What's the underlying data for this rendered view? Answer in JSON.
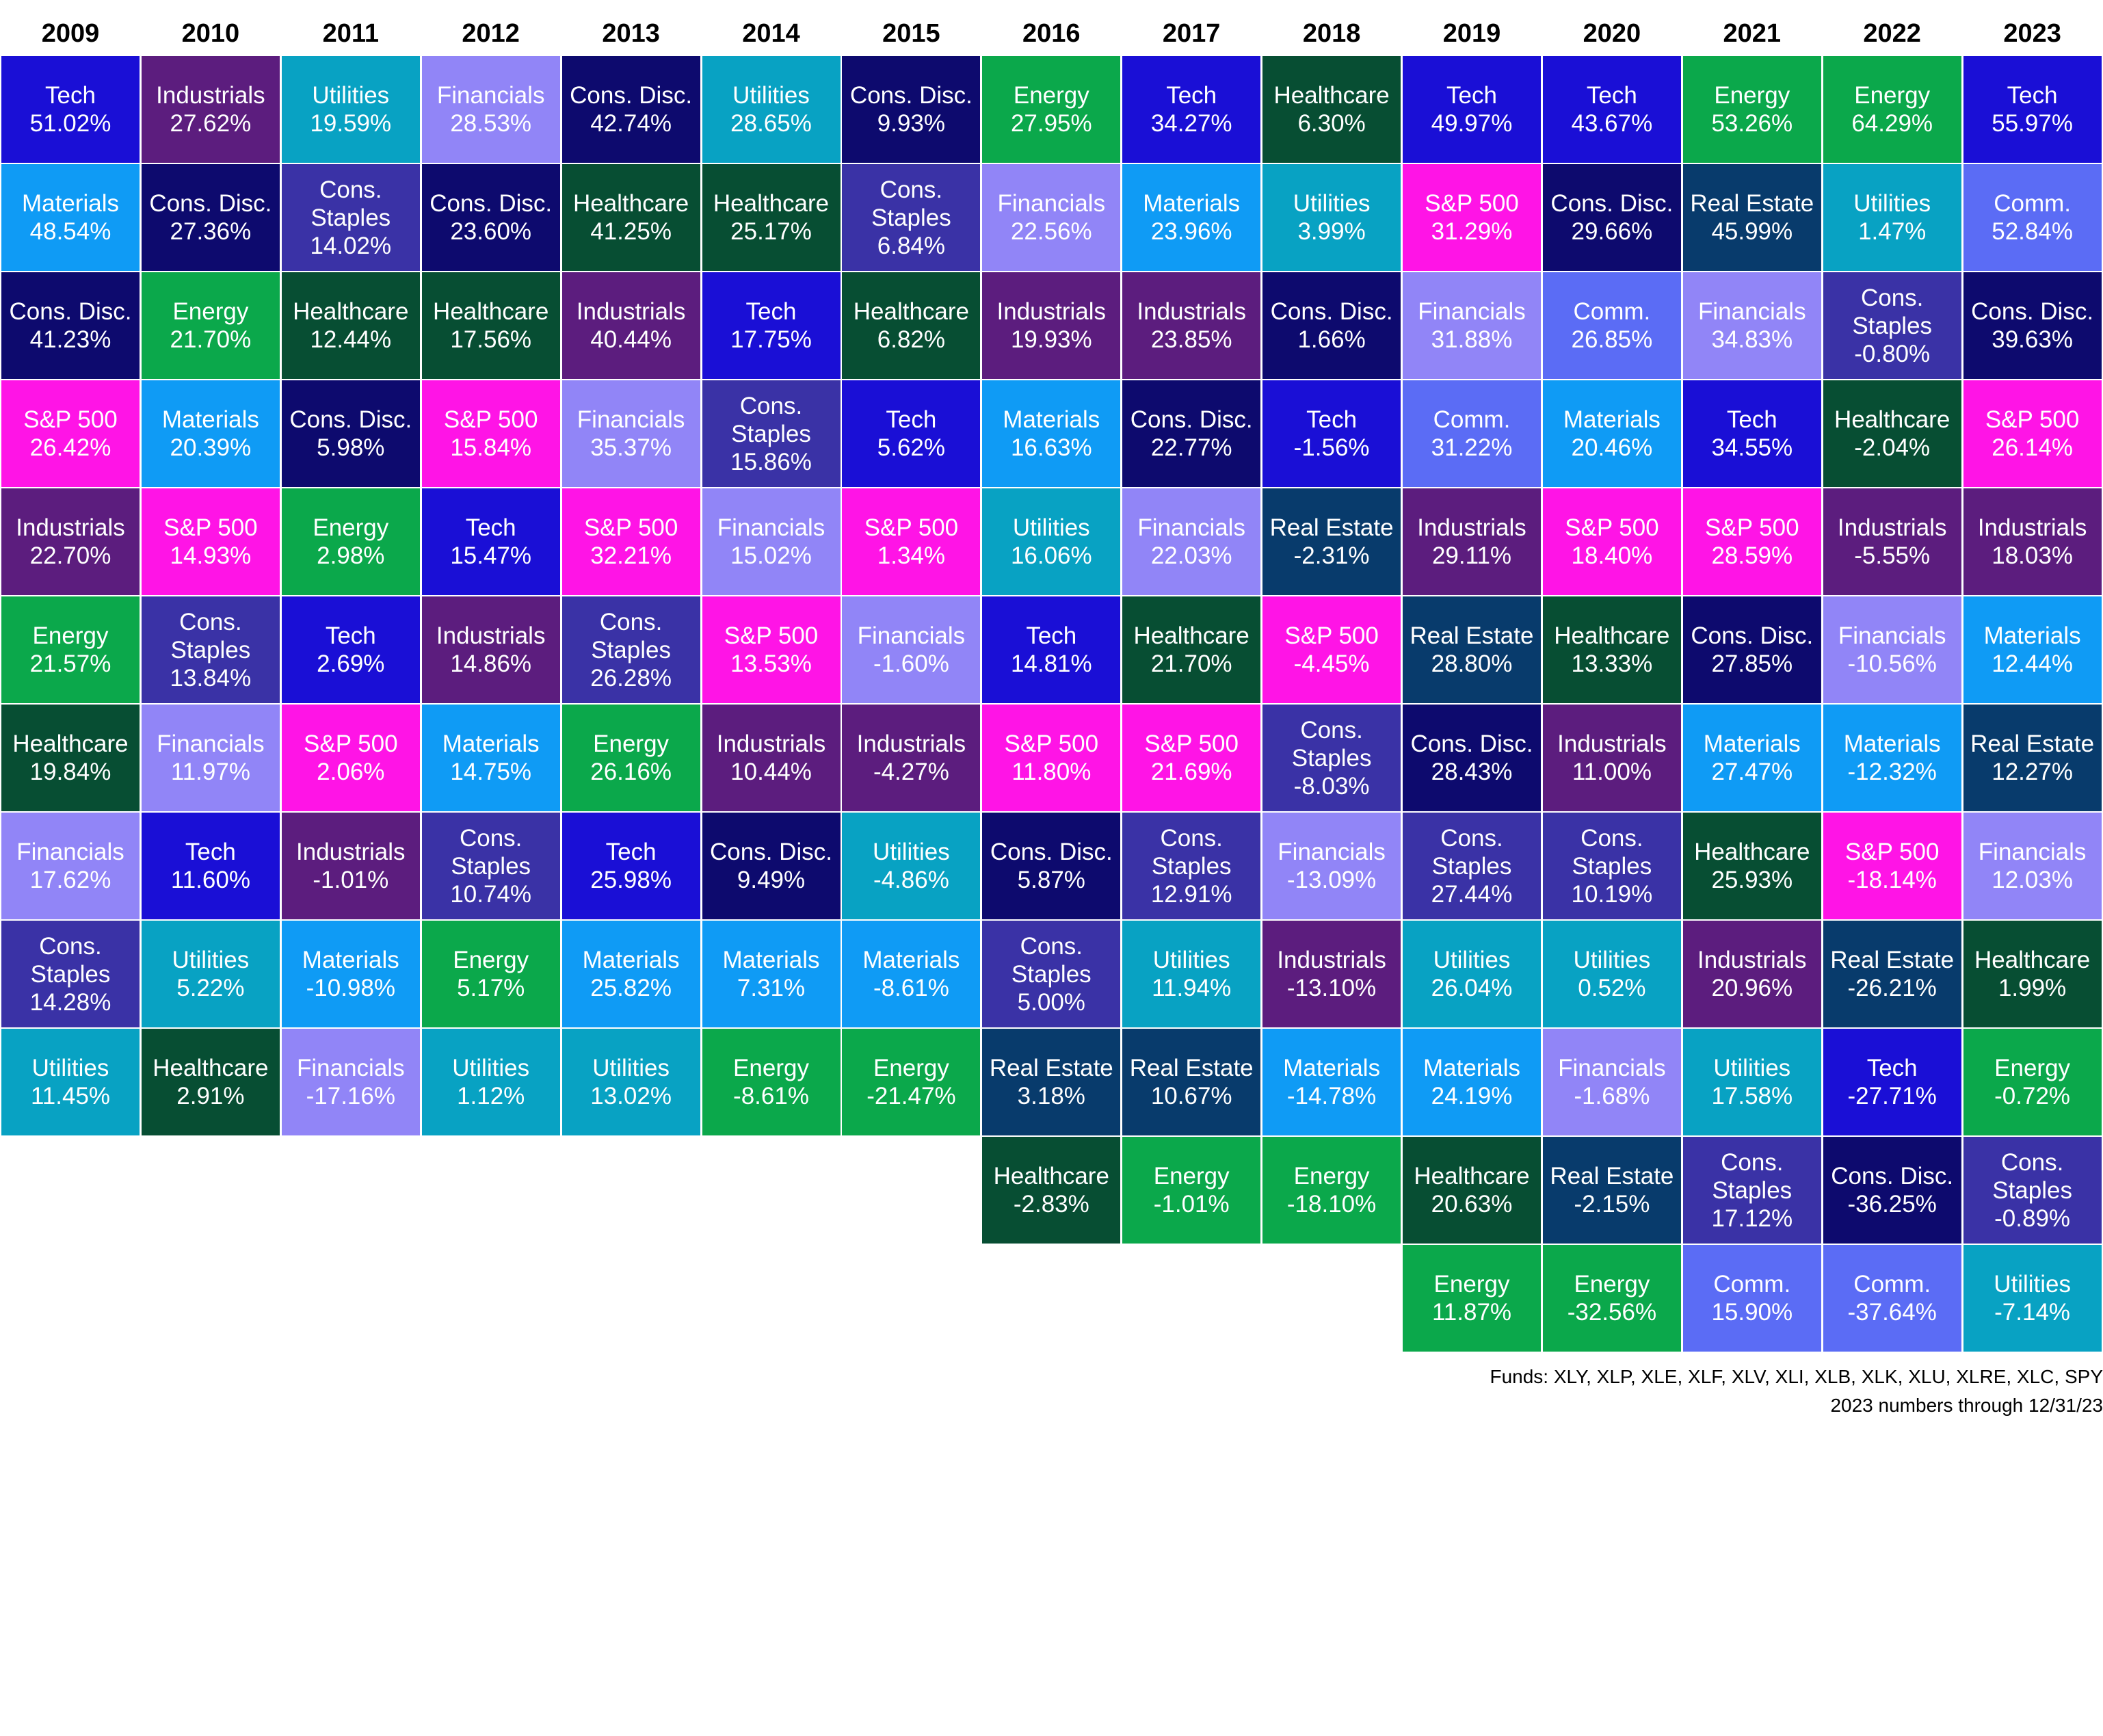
{
  "chart_data": {
    "type": "table",
    "title": "",
    "years": [
      "2009",
      "2010",
      "2011",
      "2012",
      "2013",
      "2014",
      "2015",
      "2016",
      "2017",
      "2018",
      "2019",
      "2020",
      "2021",
      "2022",
      "2023"
    ],
    "colors": {
      "Tech": "#1a0fd6",
      "Materials": "#0f9bf5",
      "Cons. Disc.": "#0d0a6e",
      "S&P 500": "#ff14e6",
      "Industrials": "#5c1d7e",
      "Energy": "#0ba84b",
      "Healthcare": "#074e33",
      "Financials": "#9185f7",
      "Cons. Staples": "#3a32a6",
      "Utilities": "#08a2c3",
      "Real Estate": "#083b6c",
      "Comm.": "#5b6cf5"
    },
    "columns": [
      {
        "year": "2009",
        "cells": [
          {
            "label": "Tech",
            "value": "51.02%"
          },
          {
            "label": "Materials",
            "value": "48.54%"
          },
          {
            "label": "Cons. Disc.",
            "value": "41.23%"
          },
          {
            "label": "S&P 500",
            "value": "26.42%"
          },
          {
            "label": "Industrials",
            "value": "22.70%"
          },
          {
            "label": "Energy",
            "value": "21.57%"
          },
          {
            "label": "Healthcare",
            "value": "19.84%"
          },
          {
            "label": "Financials",
            "value": "17.62%"
          },
          {
            "label": "Cons. Staples",
            "value": "14.28%"
          },
          {
            "label": "Utilities",
            "value": "11.45%"
          }
        ]
      },
      {
        "year": "2010",
        "cells": [
          {
            "label": "Industrials",
            "value": "27.62%"
          },
          {
            "label": "Cons. Disc.",
            "value": "27.36%"
          },
          {
            "label": "Energy",
            "value": "21.70%"
          },
          {
            "label": "Materials",
            "value": "20.39%"
          },
          {
            "label": "S&P 500",
            "value": "14.93%"
          },
          {
            "label": "Cons. Staples",
            "value": "13.84%"
          },
          {
            "label": "Financials",
            "value": "11.97%"
          },
          {
            "label": "Tech",
            "value": "11.60%"
          },
          {
            "label": "Utilities",
            "value": "5.22%"
          },
          {
            "label": "Healthcare",
            "value": "2.91%"
          }
        ]
      },
      {
        "year": "2011",
        "cells": [
          {
            "label": "Utilities",
            "value": "19.59%"
          },
          {
            "label": "Cons. Staples",
            "value": "14.02%"
          },
          {
            "label": "Healthcare",
            "value": "12.44%"
          },
          {
            "label": "Cons. Disc.",
            "value": "5.98%"
          },
          {
            "label": "Energy",
            "value": "2.98%"
          },
          {
            "label": "Tech",
            "value": "2.69%"
          },
          {
            "label": "S&P 500",
            "value": "2.06%"
          },
          {
            "label": "Industrials",
            "value": "-1.01%"
          },
          {
            "label": "Materials",
            "value": "-10.98%"
          },
          {
            "label": "Financials",
            "value": "-17.16%"
          }
        ]
      },
      {
        "year": "2012",
        "cells": [
          {
            "label": "Financials",
            "value": "28.53%"
          },
          {
            "label": "Cons. Disc.",
            "value": "23.60%"
          },
          {
            "label": "Healthcare",
            "value": "17.56%"
          },
          {
            "label": "S&P 500",
            "value": "15.84%"
          },
          {
            "label": "Tech",
            "value": "15.47%"
          },
          {
            "label": "Industrials",
            "value": "14.86%"
          },
          {
            "label": "Materials",
            "value": "14.75%"
          },
          {
            "label": "Cons. Staples",
            "value": "10.74%"
          },
          {
            "label": "Energy",
            "value": "5.17%"
          },
          {
            "label": "Utilities",
            "value": "1.12%"
          }
        ]
      },
      {
        "year": "2013",
        "cells": [
          {
            "label": "Cons. Disc.",
            "value": "42.74%"
          },
          {
            "label": "Healthcare",
            "value": "41.25%"
          },
          {
            "label": "Industrials",
            "value": "40.44%"
          },
          {
            "label": "Financials",
            "value": "35.37%"
          },
          {
            "label": "S&P 500",
            "value": "32.21%"
          },
          {
            "label": "Cons. Staples",
            "value": "26.28%"
          },
          {
            "label": "Energy",
            "value": "26.16%"
          },
          {
            "label": "Tech",
            "value": "25.98%"
          },
          {
            "label": "Materials",
            "value": "25.82%"
          },
          {
            "label": "Utilities",
            "value": "13.02%"
          }
        ]
      },
      {
        "year": "2014",
        "cells": [
          {
            "label": "Utilities",
            "value": "28.65%"
          },
          {
            "label": "Healthcare",
            "value": "25.17%"
          },
          {
            "label": "Tech",
            "value": "17.75%"
          },
          {
            "label": "Cons. Staples",
            "value": "15.86%"
          },
          {
            "label": "Financials",
            "value": "15.02%"
          },
          {
            "label": "S&P 500",
            "value": "13.53%"
          },
          {
            "label": "Industrials",
            "value": "10.44%"
          },
          {
            "label": "Cons. Disc.",
            "value": "9.49%"
          },
          {
            "label": "Materials",
            "value": "7.31%"
          },
          {
            "label": "Energy",
            "value": "-8.61%"
          }
        ]
      },
      {
        "year": "2015",
        "cells": [
          {
            "label": "Cons. Disc.",
            "value": "9.93%"
          },
          {
            "label": "Cons. Staples",
            "value": "6.84%"
          },
          {
            "label": "Healthcare",
            "value": "6.82%"
          },
          {
            "label": "Tech",
            "value": "5.62%"
          },
          {
            "label": "S&P 500",
            "value": "1.34%"
          },
          {
            "label": "Financials",
            "value": "-1.60%"
          },
          {
            "label": "Industrials",
            "value": "-4.27%"
          },
          {
            "label": "Utilities",
            "value": "-4.86%"
          },
          {
            "label": "Materials",
            "value": "-8.61%"
          },
          {
            "label": "Energy",
            "value": "-21.47%"
          }
        ]
      },
      {
        "year": "2016",
        "cells": [
          {
            "label": "Energy",
            "value": "27.95%"
          },
          {
            "label": "Financials",
            "value": "22.56%"
          },
          {
            "label": "Industrials",
            "value": "19.93%"
          },
          {
            "label": "Materials",
            "value": "16.63%"
          },
          {
            "label": "Utilities",
            "value": "16.06%"
          },
          {
            "label": "Tech",
            "value": "14.81%"
          },
          {
            "label": "S&P 500",
            "value": "11.80%"
          },
          {
            "label": "Cons. Disc.",
            "value": "5.87%"
          },
          {
            "label": "Cons. Staples",
            "value": "5.00%"
          },
          {
            "label": "Real Estate",
            "value": "3.18%"
          },
          {
            "label": "Healthcare",
            "value": "-2.83%"
          }
        ]
      },
      {
        "year": "2017",
        "cells": [
          {
            "label": "Tech",
            "value": "34.27%"
          },
          {
            "label": "Materials",
            "value": "23.96%"
          },
          {
            "label": "Industrials",
            "value": "23.85%"
          },
          {
            "label": "Cons. Disc.",
            "value": "22.77%"
          },
          {
            "label": "Financials",
            "value": "22.03%"
          },
          {
            "label": "Healthcare",
            "value": "21.70%"
          },
          {
            "label": "S&P 500",
            "value": "21.69%"
          },
          {
            "label": "Cons. Staples",
            "value": "12.91%"
          },
          {
            "label": "Utilities",
            "value": "11.94%"
          },
          {
            "label": "Real Estate",
            "value": "10.67%"
          },
          {
            "label": "Energy",
            "value": "-1.01%"
          }
        ]
      },
      {
        "year": "2018",
        "cells": [
          {
            "label": "Healthcare",
            "value": "6.30%"
          },
          {
            "label": "Utilities",
            "value": "3.99%"
          },
          {
            "label": "Cons. Disc.",
            "value": "1.66%"
          },
          {
            "label": "Tech",
            "value": "-1.56%"
          },
          {
            "label": "Real Estate",
            "value": "-2.31%"
          },
          {
            "label": "S&P 500",
            "value": "-4.45%"
          },
          {
            "label": "Cons. Staples",
            "value": "-8.03%"
          },
          {
            "label": "Financials",
            "value": "-13.09%"
          },
          {
            "label": "Industrials",
            "value": "-13.10%"
          },
          {
            "label": "Materials",
            "value": "-14.78%"
          },
          {
            "label": "Energy",
            "value": "-18.10%"
          }
        ]
      },
      {
        "year": "2019",
        "cells": [
          {
            "label": "Tech",
            "value": "49.97%"
          },
          {
            "label": "S&P 500",
            "value": "31.29%"
          },
          {
            "label": "Financials",
            "value": "31.88%"
          },
          {
            "label": "Comm.",
            "value": "31.22%"
          },
          {
            "label": "Industrials",
            "value": "29.11%"
          },
          {
            "label": "Real Estate",
            "value": "28.80%"
          },
          {
            "label": "Cons. Disc.",
            "value": "28.43%"
          },
          {
            "label": "Cons. Staples",
            "value": "27.44%"
          },
          {
            "label": "Utilities",
            "value": "26.04%"
          },
          {
            "label": "Materials",
            "value": "24.19%"
          },
          {
            "label": "Healthcare",
            "value": "20.63%"
          },
          {
            "label": "Energy",
            "value": "11.87%"
          }
        ]
      },
      {
        "year": "2020",
        "cells": [
          {
            "label": "Tech",
            "value": "43.67%"
          },
          {
            "label": "Cons. Disc.",
            "value": "29.66%"
          },
          {
            "label": "Comm.",
            "value": "26.85%"
          },
          {
            "label": "Materials",
            "value": "20.46%"
          },
          {
            "label": "S&P 500",
            "value": "18.40%"
          },
          {
            "label": "Healthcare",
            "value": "13.33%"
          },
          {
            "label": "Industrials",
            "value": "11.00%"
          },
          {
            "label": "Cons. Staples",
            "value": "10.19%"
          },
          {
            "label": "Utilities",
            "value": "0.52%"
          },
          {
            "label": "Financials",
            "value": "-1.68%"
          },
          {
            "label": "Real Estate",
            "value": "-2.15%"
          },
          {
            "label": "Energy",
            "value": "-32.56%"
          }
        ]
      },
      {
        "year": "2021",
        "cells": [
          {
            "label": "Energy",
            "value": "53.26%"
          },
          {
            "label": "Real Estate",
            "value": "45.99%"
          },
          {
            "label": "Financials",
            "value": "34.83%"
          },
          {
            "label": "Tech",
            "value": "34.55%"
          },
          {
            "label": "S&P 500",
            "value": "28.59%"
          },
          {
            "label": "Cons. Disc.",
            "value": "27.85%"
          },
          {
            "label": "Materials",
            "value": "27.47%"
          },
          {
            "label": "Healthcare",
            "value": "25.93%"
          },
          {
            "label": "Industrials",
            "value": "20.96%"
          },
          {
            "label": "Utilities",
            "value": "17.58%"
          },
          {
            "label": "Cons. Staples",
            "value": "17.12%"
          },
          {
            "label": "Comm.",
            "value": "15.90%"
          }
        ]
      },
      {
        "year": "2022",
        "cells": [
          {
            "label": "Energy",
            "value": "64.29%"
          },
          {
            "label": "Utilities",
            "value": "1.47%"
          },
          {
            "label": "Cons. Staples",
            "value": "-0.80%"
          },
          {
            "label": "Healthcare",
            "value": "-2.04%"
          },
          {
            "label": "Industrials",
            "value": "-5.55%"
          },
          {
            "label": "Financials",
            "value": "-10.56%"
          },
          {
            "label": "Materials",
            "value": "-12.32%"
          },
          {
            "label": "S&P 500",
            "value": "-18.14%"
          },
          {
            "label": "Real Estate",
            "value": "-26.21%"
          },
          {
            "label": "Tech",
            "value": "-27.71%"
          },
          {
            "label": "Cons. Disc.",
            "value": "-36.25%"
          },
          {
            "label": "Comm.",
            "value": "-37.64%"
          }
        ]
      },
      {
        "year": "2023",
        "cells": [
          {
            "label": "Tech",
            "value": "55.97%"
          },
          {
            "label": "Comm.",
            "value": "52.84%"
          },
          {
            "label": "Cons. Disc.",
            "value": "39.63%"
          },
          {
            "label": "S&P 500",
            "value": "26.14%"
          },
          {
            "label": "Industrials",
            "value": "18.03%"
          },
          {
            "label": "Materials",
            "value": "12.44%"
          },
          {
            "label": "Real Estate",
            "value": "12.27%"
          },
          {
            "label": "Financials",
            "value": "12.03%"
          },
          {
            "label": "Healthcare",
            "value": "1.99%"
          },
          {
            "label": "Energy",
            "value": "-0.72%"
          },
          {
            "label": "Cons. Staples",
            "value": "-0.89%"
          },
          {
            "label": "Utilities",
            "value": "-7.14%"
          }
        ]
      }
    ],
    "footnotes": [
      "Funds: XLY, XLP, XLE, XLF, XLV, XLI, XLB, XLK, XLU, XLRE, XLC, SPY",
      "2023 numbers through 12/31/23"
    ]
  }
}
